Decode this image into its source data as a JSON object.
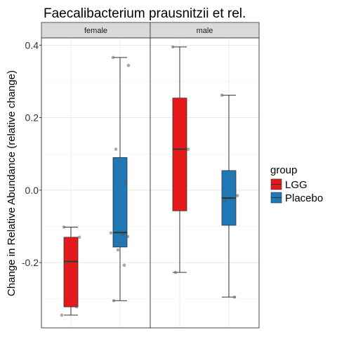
{
  "chart_data": {
    "type": "box",
    "title": "Faecalibacterium prausnitzii et rel.",
    "ylabel": "Change in Relative Abundance (relative change)",
    "xlabel": "",
    "ylim": [
      -0.38,
      0.42
    ],
    "yticks": [
      -0.2,
      0.0,
      0.2,
      0.4
    ],
    "ytick_labels": [
      "-0.2",
      "0.0",
      "0.2",
      "0.4"
    ],
    "facets": [
      "female",
      "male"
    ],
    "legend": {
      "title": "group",
      "position": "right",
      "entries": [
        {
          "name": "LGG",
          "color": "#e31a1c"
        },
        {
          "name": "Placebo",
          "color": "#1f78b4"
        }
      ]
    },
    "panels": [
      {
        "facet": "female",
        "boxes": [
          {
            "group": "LGG",
            "whisker_low": -0.345,
            "q1": -0.322,
            "median": -0.197,
            "q3": -0.13,
            "whisker_high": -0.102,
            "points": [
              -0.102,
              -0.13,
              -0.2,
              -0.322,
              -0.345
            ]
          },
          {
            "group": "Placebo",
            "whisker_low": -0.305,
            "q1": -0.157,
            "median": -0.117,
            "q3": 0.09,
            "whisker_high": 0.366,
            "points": [
              0.366,
              0.344,
              0.113,
              0.023,
              -0.118,
              -0.122,
              -0.128,
              -0.165,
              -0.207,
              -0.305
            ]
          }
        ]
      },
      {
        "facet": "male",
        "boxes": [
          {
            "group": "LGG",
            "whisker_low": -0.227,
            "q1": -0.057,
            "median": 0.113,
            "q3": 0.254,
            "whisker_high": 0.395,
            "points": [
              0.395,
              0.113,
              -0.227
            ]
          },
          {
            "group": "Placebo",
            "whisker_low": -0.295,
            "q1": -0.097,
            "median": -0.022,
            "q3": 0.054,
            "whisker_high": 0.262,
            "points": [
              0.262,
              -0.015,
              -0.03,
              -0.295
            ]
          }
        ]
      }
    ]
  }
}
